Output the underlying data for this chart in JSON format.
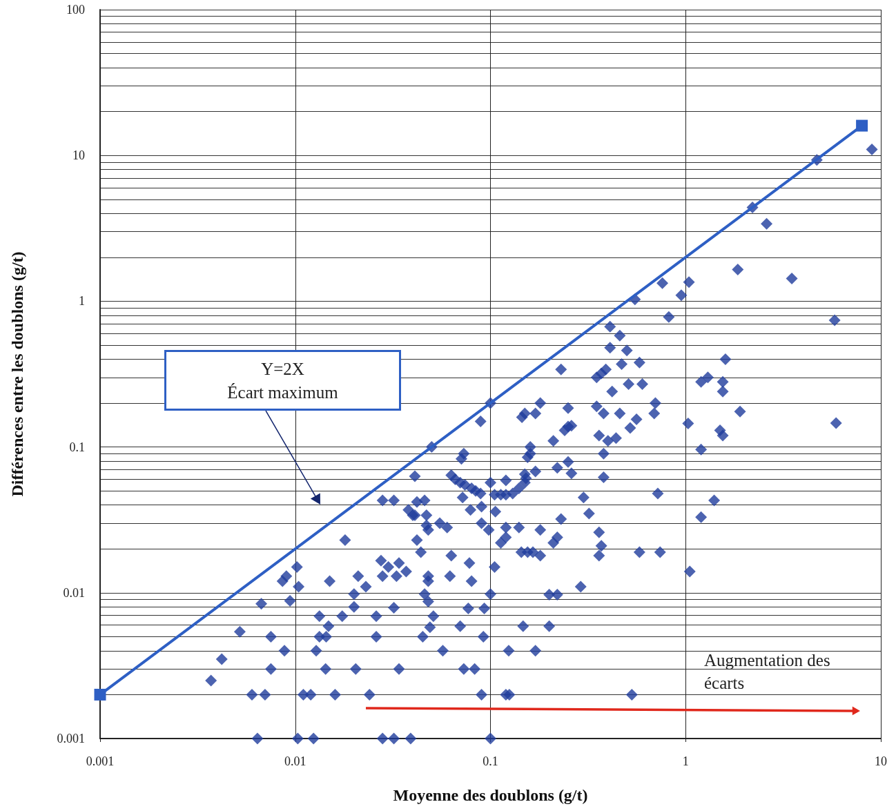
{
  "chart_data": {
    "type": "scatter",
    "xlabel": "Moyenne des doublons (g/t)",
    "ylabel": "Différences entre les doublons (g/t)",
    "log": "xy",
    "grid": true,
    "marker": "diamond",
    "xlim": [
      0.001,
      10
    ],
    "xticks": [
      0.001,
      0.01,
      0.1,
      1,
      10
    ],
    "ylim": [
      0.001,
      100
    ],
    "yticks": [
      0.001,
      0.01,
      0.1,
      1,
      10,
      100
    ],
    "annotations": [
      "Y=2X\nÉcart maximum",
      "Augmentation des écarts"
    ],
    "series": [
      {
        "type": "scatter",
        "color": "#1f3c9c",
        "x": [
          0.0064,
          0.0103,
          0.0124,
          0.028,
          0.032,
          0.039,
          0.1,
          0.006,
          0.007,
          0.011,
          0.012,
          0.016,
          0.024,
          0.09,
          0.12,
          0.125,
          0.53,
          0.0037,
          0.0042,
          0.0052,
          0.0075,
          0.0075,
          0.0088,
          0.0067,
          0.0102,
          0.009,
          0.0086,
          0.0104,
          0.0094,
          0.018,
          0.015,
          0.0133,
          0.0174,
          0.0148,
          0.0133,
          0.0144,
          0.0128,
          0.0143,
          0.0204,
          0.034,
          0.026,
          0.026,
          0.02,
          0.02,
          0.023,
          0.021,
          0.0275,
          0.028,
          0.032,
          0.03,
          0.034,
          0.037,
          0.033,
          0.028,
          0.032,
          0.038,
          0.04,
          0.041,
          0.042,
          0.042,
          0.18,
          0.145,
          0.15,
          0.17,
          0.25,
          0.25,
          0.24,
          0.21,
          0.16,
          0.16,
          0.155,
          0.22,
          0.25,
          0.26,
          0.17,
          0.15,
          0.152,
          0.15,
          0.14,
          0.13,
          0.12,
          0.12,
          0.105,
          0.113,
          0.1,
          0.089,
          0.073,
          0.071,
          0.063,
          0.066,
          0.07,
          0.074,
          0.08,
          0.084,
          0.089,
          0.072,
          0.079,
          0.09,
          0.106,
          0.046,
          0.041,
          0.047,
          0.055,
          0.06,
          0.047,
          0.048,
          0.044,
          0.09,
          0.098,
          0.12,
          0.12,
          0.113,
          0.14,
          0.18,
          0.22,
          0.21,
          0.23,
          0.144,
          0.155,
          0.165,
          0.18,
          0.063,
          0.078,
          0.062,
          0.08,
          0.105,
          0.048,
          0.048,
          0.046,
          0.048,
          0.1,
          0.2,
          0.22,
          0.29,
          0.077,
          0.093,
          0.051,
          0.049,
          0.045,
          0.07,
          0.092,
          0.147,
          0.2,
          0.057,
          0.124,
          0.17,
          0.073,
          0.083,
          0.1,
          0.05,
          0.82,
          0.41,
          0.46,
          0.41,
          0.5,
          0.58,
          0.47,
          0.23,
          0.35,
          0.37,
          0.39,
          0.51,
          0.6,
          0.42,
          1.6,
          1.2,
          1.3,
          1.55,
          1.55,
          1.9,
          1.03,
          1.5,
          1.55,
          1.2,
          1.4,
          1.2,
          1.05,
          0.7,
          0.69,
          0.56,
          0.52,
          0.46,
          0.38,
          0.35,
          0.26,
          0.36,
          0.4,
          0.44,
          0.38,
          0.38,
          0.3,
          0.32,
          0.72,
          0.36,
          0.37,
          0.36,
          0.58,
          0.74,
          9,
          4.7,
          2.2,
          2.6,
          1.85,
          3.5,
          0.76,
          1.04,
          0.95,
          5.8,
          5.9,
          0.55
        ],
        "values": [
          0.001,
          0.001,
          0.001,
          0.001,
          0.001,
          0.001,
          0.001,
          0.002,
          0.002,
          0.002,
          0.002,
          0.002,
          0.002,
          0.002,
          0.002,
          0.002,
          0.002,
          0.0025,
          0.0035,
          0.0054,
          0.005,
          0.003,
          0.004,
          0.0084,
          0.015,
          0.013,
          0.012,
          0.011,
          0.0088,
          0.023,
          0.012,
          0.0069,
          0.0069,
          0.0059,
          0.005,
          0.005,
          0.004,
          0.003,
          0.003,
          0.003,
          0.005,
          0.0069,
          0.008,
          0.0098,
          0.011,
          0.013,
          0.0166,
          0.013,
          0.0079,
          0.015,
          0.016,
          0.014,
          0.013,
          0.043,
          0.043,
          0.037,
          0.034,
          0.063,
          0.042,
          0.023,
          0.2,
          0.16,
          0.17,
          0.17,
          0.185,
          0.138,
          0.13,
          0.11,
          0.1,
          0.09,
          0.085,
          0.072,
          0.079,
          0.066,
          0.068,
          0.065,
          0.061,
          0.057,
          0.052,
          0.048,
          0.047,
          0.059,
          0.047,
          0.047,
          0.057,
          0.15,
          0.09,
          0.083,
          0.064,
          0.06,
          0.057,
          0.055,
          0.052,
          0.05,
          0.048,
          0.045,
          0.037,
          0.039,
          0.036,
          0.043,
          0.034,
          0.034,
          0.03,
          0.028,
          0.029,
          0.027,
          0.019,
          0.03,
          0.027,
          0.028,
          0.024,
          0.022,
          0.028,
          0.027,
          0.024,
          0.022,
          0.032,
          0.019,
          0.019,
          0.019,
          0.018,
          0.018,
          0.016,
          0.013,
          0.012,
          0.015,
          0.013,
          0.012,
          0.0098,
          0.0087,
          0.0098,
          0.0097,
          0.0097,
          0.011,
          0.0078,
          0.0078,
          0.0069,
          0.0058,
          0.005,
          0.0059,
          0.005,
          0.0059,
          0.0059,
          0.004,
          0.004,
          0.004,
          0.003,
          0.003,
          0.2,
          0.1,
          0.78,
          0.67,
          0.58,
          0.48,
          0.46,
          0.38,
          0.37,
          0.34,
          0.3,
          0.32,
          0.34,
          0.27,
          0.27,
          0.24,
          0.4,
          0.28,
          0.3,
          0.28,
          0.24,
          0.175,
          0.145,
          0.13,
          0.12,
          0.096,
          0.043,
          0.033,
          0.014,
          0.2,
          0.17,
          0.155,
          0.135,
          0.17,
          0.17,
          0.19,
          0.14,
          0.12,
          0.11,
          0.115,
          0.09,
          0.062,
          0.045,
          0.035,
          0.048,
          0.026,
          0.021,
          0.018,
          0.019,
          0.019,
          11,
          9.3,
          4.4,
          3.4,
          1.65,
          1.43,
          1.33,
          1.35,
          1.1,
          0.74,
          0.146,
          1.03
        ]
      },
      {
        "type": "line",
        "color": "#2e5fc4",
        "marker": "square",
        "x": [
          0.001,
          8
        ],
        "values": [
          0.002,
          16
        ]
      }
    ]
  }
}
